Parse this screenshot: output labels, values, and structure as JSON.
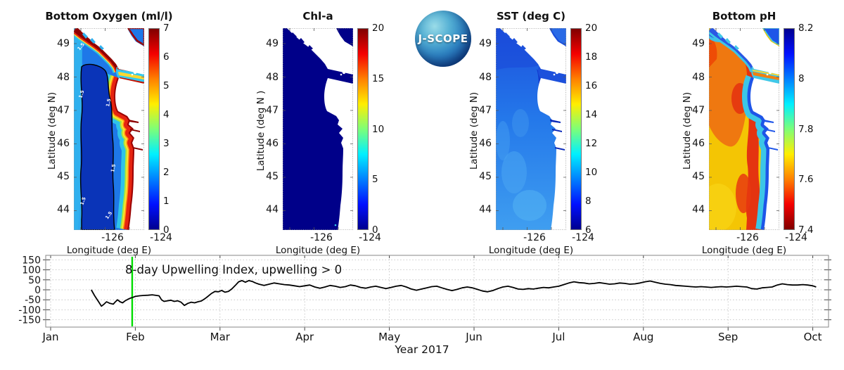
{
  "logo": {
    "text": "J-SCOPE"
  },
  "panels": [
    {
      "title": "Bottom Oxygen (ml/l)",
      "ylabel": "Latitude (deg N)",
      "xlabel": "Longitude (deg E)",
      "lat_ticks": [
        "49",
        "48",
        "47",
        "46",
        "45",
        "44"
      ],
      "lon_ticks": [
        "-126",
        "-124"
      ],
      "colorbar_ticks": [
        "7",
        "6",
        "5",
        "4",
        "3",
        "2",
        "1",
        "0"
      ],
      "contour_label": "1.5"
    },
    {
      "title": "Chl-a",
      "ylabel": "Latitude (deg N )",
      "xlabel": "Longitude (deg E)",
      "lat_ticks": [
        "49",
        "48",
        "47",
        "46",
        "45",
        "44"
      ],
      "lon_ticks": [
        "-126",
        "-124"
      ],
      "colorbar_ticks": [
        "20",
        "15",
        "10",
        "5",
        "0"
      ]
    },
    {
      "title": "SST (deg C)",
      "ylabel": "Latitude (deg N)",
      "xlabel": "Longitude (deg E)",
      "lat_ticks": [
        "49",
        "48",
        "47",
        "46",
        "45",
        "44"
      ],
      "lon_ticks": [
        "-126",
        "-124"
      ],
      "colorbar_ticks": [
        "20",
        "18",
        "16",
        "14",
        "12",
        "10",
        "8",
        "6"
      ]
    },
    {
      "title": "Bottom pH",
      "ylabel": "Latitude (deg N)",
      "xlabel": "Longitude (deg E)",
      "lat_ticks": [
        "49",
        "48",
        "47",
        "46",
        "45",
        "44"
      ],
      "lon_ticks": [
        "-126",
        "-124"
      ],
      "colorbar_ticks": [
        "8.2",
        "8",
        "7.8",
        "7.6",
        "7.4"
      ]
    }
  ],
  "chart_data": [
    {
      "type": "heatmap",
      "title": "Bottom Oxygen (ml/l)",
      "xlabel": "Longitude (deg E)",
      "ylabel": "Latitude (deg N)",
      "xlim": [
        -126.3,
        -123.4
      ],
      "ylim": [
        43.4,
        49.5
      ],
      "x_ticks": [
        -126,
        -124
      ],
      "y_ticks": [
        49,
        48,
        47,
        46,
        45,
        44
      ],
      "colormap": "jet",
      "colorbar_range": [
        0,
        7
      ],
      "colorbar_ticks": [
        7,
        6,
        5,
        4,
        3,
        2,
        1,
        0
      ],
      "contour_level": 1.5,
      "summary": "Hypoxic pool (<1.5 ml/l, dark blue inside black 1.5 contour) along mid-shelf; high oxygen (5-7, red/dark red) band along the coast, Vancouver Island shore and Strait of Juan de Fuca; 1-3 ml/l blue-cyan offshore."
    },
    {
      "type": "heatmap",
      "title": "Chl-a",
      "xlabel": "Longitude (deg E)",
      "ylabel": "Latitude (deg N )",
      "xlim": [
        -126.3,
        -123.4
      ],
      "ylim": [
        43.4,
        49.5
      ],
      "x_ticks": [
        -126,
        -124
      ],
      "y_ticks": [
        49,
        48,
        47,
        46,
        45,
        44
      ],
      "colormap": "jet",
      "colorbar_range": [
        0,
        20
      ],
      "colorbar_ticks": [
        20,
        15,
        10,
        5,
        0
      ],
      "summary": "Near-uniform very low chlorophyll-a (~0-1, dark navy) across the whole domain."
    },
    {
      "type": "heatmap",
      "title": "SST (deg C)",
      "xlabel": "Longitude (deg E)",
      "ylabel": "Latitude (deg N)",
      "xlim": [
        -126.3,
        -123.4
      ],
      "ylim": [
        43.4,
        49.5
      ],
      "x_ticks": [
        -126,
        -124
      ],
      "y_ticks": [
        49,
        48,
        47,
        46,
        45,
        44
      ],
      "colormap": "jet",
      "colorbar_range": [
        6,
        20
      ],
      "colorbar_ticks": [
        20,
        18,
        16,
        14,
        12,
        10,
        8,
        6
      ],
      "summary": "Cool winter SST ~8-11 degC: darker blue (7-8) in the north, strait and nearshore estuaries; slightly lighter blue (~10-11) offshore to the south."
    },
    {
      "type": "heatmap",
      "title": "Bottom pH",
      "xlabel": "Longitude (deg E)",
      "ylabel": "Latitude (deg N)",
      "xlim": [
        -126.3,
        -123.4
      ],
      "ylim": [
        43.4,
        49.5
      ],
      "x_ticks": [
        -126,
        -124
      ],
      "y_ticks": [
        49,
        48,
        47,
        46,
        45,
        44
      ],
      "colormap": "jet reversed",
      "colorbar_range": [
        7.4,
        8.2
      ],
      "colorbar_ticks": [
        8.2,
        8,
        7.8,
        7.6,
        7.4
      ],
      "summary": "Low bottom pH (~7.5-7.6, orange/red) offshore on the deep shelf; higher pH (~7.9-8.1, cyan/blue) band along the coast, in the Strait of Juan de Fuca and NW corner."
    },
    {
      "type": "line",
      "title": "8-day Upwelling Index, upwelling > 0",
      "xlabel": "Year 2017",
      "x_ticks": [
        "Jan",
        "Feb",
        "Mar",
        "Apr",
        "May",
        "Jun",
        "Jul",
        "Aug",
        "Sep",
        "Oct"
      ],
      "y_ticks": [
        150,
        100,
        50,
        0,
        -50,
        -100,
        -150
      ],
      "ylim": [
        -186,
        172
      ],
      "grid": true,
      "marker": {
        "name": "current-date-line",
        "x_month": 0.963,
        "color": "#00dd00"
      },
      "series": [
        {
          "name": "8-day Upwelling Index",
          "x_unit": "months since Jan 1 2017",
          "points": [
            [
              0.48,
              0
            ],
            [
              0.52,
              -30
            ],
            [
              0.57,
              -62
            ],
            [
              0.6,
              -82
            ],
            [
              0.63,
              -72
            ],
            [
              0.66,
              -60
            ],
            [
              0.7,
              -68
            ],
            [
              0.74,
              -72
            ],
            [
              0.76,
              -62
            ],
            [
              0.79,
              -50
            ],
            [
              0.82,
              -60
            ],
            [
              0.85,
              -65
            ],
            [
              0.88,
              -55
            ],
            [
              0.91,
              -48
            ],
            [
              0.94,
              -42
            ],
            [
              0.97,
              -38
            ],
            [
              1,
              -33
            ],
            [
              1.05,
              -30
            ],
            [
              1.1,
              -28
            ],
            [
              1.15,
              -27
            ],
            [
              1.2,
              -25
            ],
            [
              1.25,
              -28
            ],
            [
              1.28,
              -30
            ],
            [
              1.31,
              -50
            ],
            [
              1.34,
              -58
            ],
            [
              1.38,
              -55
            ],
            [
              1.42,
              -52
            ],
            [
              1.46,
              -58
            ],
            [
              1.5,
              -55
            ],
            [
              1.54,
              -62
            ],
            [
              1.58,
              -78
            ],
            [
              1.62,
              -68
            ],
            [
              1.66,
              -62
            ],
            [
              1.7,
              -65
            ],
            [
              1.74,
              -60
            ],
            [
              1.78,
              -56
            ],
            [
              1.82,
              -45
            ],
            [
              1.86,
              -32
            ],
            [
              1.9,
              -18
            ],
            [
              1.94,
              -8
            ],
            [
              1.98,
              -10
            ],
            [
              2.02,
              -3
            ],
            [
              2.06,
              -12
            ],
            [
              2.1,
              -8
            ],
            [
              2.14,
              5
            ],
            [
              2.18,
              22
            ],
            [
              2.22,
              40
            ],
            [
              2.26,
              46
            ],
            [
              2.3,
              38
            ],
            [
              2.34,
              46
            ],
            [
              2.38,
              42
            ],
            [
              2.42,
              34
            ],
            [
              2.46,
              28
            ],
            [
              2.52,
              22
            ],
            [
              2.58,
              28
            ],
            [
              2.64,
              34
            ],
            [
              2.7,
              30
            ],
            [
              2.76,
              26
            ],
            [
              2.82,
              24
            ],
            [
              2.88,
              20
            ],
            [
              2.94,
              16
            ],
            [
              3,
              20
            ],
            [
              3.06,
              24
            ],
            [
              3.12,
              14
            ],
            [
              3.18,
              8
            ],
            [
              3.24,
              14
            ],
            [
              3.3,
              22
            ],
            [
              3.36,
              18
            ],
            [
              3.42,
              12
            ],
            [
              3.48,
              16
            ],
            [
              3.54,
              24
            ],
            [
              3.6,
              20
            ],
            [
              3.66,
              12
            ],
            [
              3.72,
              8
            ],
            [
              3.78,
              14
            ],
            [
              3.84,
              18
            ],
            [
              3.9,
              12
            ],
            [
              3.96,
              6
            ],
            [
              4.02,
              12
            ],
            [
              4.08,
              18
            ],
            [
              4.14,
              22
            ],
            [
              4.2,
              14
            ],
            [
              4.26,
              4
            ],
            [
              4.32,
              -2
            ],
            [
              4.38,
              4
            ],
            [
              4.44,
              10
            ],
            [
              4.5,
              16
            ],
            [
              4.56,
              18
            ],
            [
              4.62,
              10
            ],
            [
              4.68,
              2
            ],
            [
              4.74,
              -4
            ],
            [
              4.8,
              2
            ],
            [
              4.86,
              10
            ],
            [
              4.92,
              14
            ],
            [
              4.98,
              10
            ],
            [
              5.04,
              2
            ],
            [
              5.1,
              -6
            ],
            [
              5.16,
              -10
            ],
            [
              5.22,
              -4
            ],
            [
              5.28,
              6
            ],
            [
              5.34,
              14
            ],
            [
              5.4,
              18
            ],
            [
              5.46,
              12
            ],
            [
              5.52,
              4
            ],
            [
              5.58,
              2
            ],
            [
              5.64,
              6
            ],
            [
              5.7,
              4
            ],
            [
              5.76,
              8
            ],
            [
              5.82,
              12
            ],
            [
              5.88,
              10
            ],
            [
              5.94,
              14
            ],
            [
              6,
              18
            ],
            [
              6.06,
              26
            ],
            [
              6.12,
              34
            ],
            [
              6.18,
              40
            ],
            [
              6.24,
              36
            ],
            [
              6.3,
              34
            ],
            [
              6.36,
              30
            ],
            [
              6.42,
              32
            ],
            [
              6.48,
              36
            ],
            [
              6.54,
              32
            ],
            [
              6.6,
              28
            ],
            [
              6.66,
              30
            ],
            [
              6.72,
              34
            ],
            [
              6.78,
              32
            ],
            [
              6.84,
              28
            ],
            [
              6.9,
              30
            ],
            [
              6.96,
              34
            ],
            [
              7.02,
              40
            ],
            [
              7.08,
              44
            ],
            [
              7.14,
              38
            ],
            [
              7.2,
              32
            ],
            [
              7.26,
              28
            ],
            [
              7.32,
              26
            ],
            [
              7.38,
              22
            ],
            [
              7.44,
              20
            ],
            [
              7.5,
              18
            ],
            [
              7.56,
              16
            ],
            [
              7.62,
              14
            ],
            [
              7.68,
              16
            ],
            [
              7.74,
              14
            ],
            [
              7.8,
              12
            ],
            [
              7.86,
              14
            ],
            [
              7.92,
              16
            ],
            [
              7.98,
              14
            ],
            [
              8.04,
              16
            ],
            [
              8.1,
              18
            ],
            [
              8.16,
              16
            ],
            [
              8.22,
              14
            ],
            [
              8.28,
              6
            ],
            [
              8.34,
              4
            ],
            [
              8.4,
              10
            ],
            [
              8.46,
              12
            ],
            [
              8.52,
              14
            ],
            [
              8.58,
              24
            ],
            [
              8.64,
              30
            ],
            [
              8.7,
              26
            ],
            [
              8.76,
              24
            ],
            [
              8.82,
              24
            ],
            [
              8.88,
              26
            ],
            [
              8.94,
              24
            ],
            [
              9,
              20
            ],
            [
              9.04,
              14
            ]
          ]
        }
      ]
    }
  ]
}
